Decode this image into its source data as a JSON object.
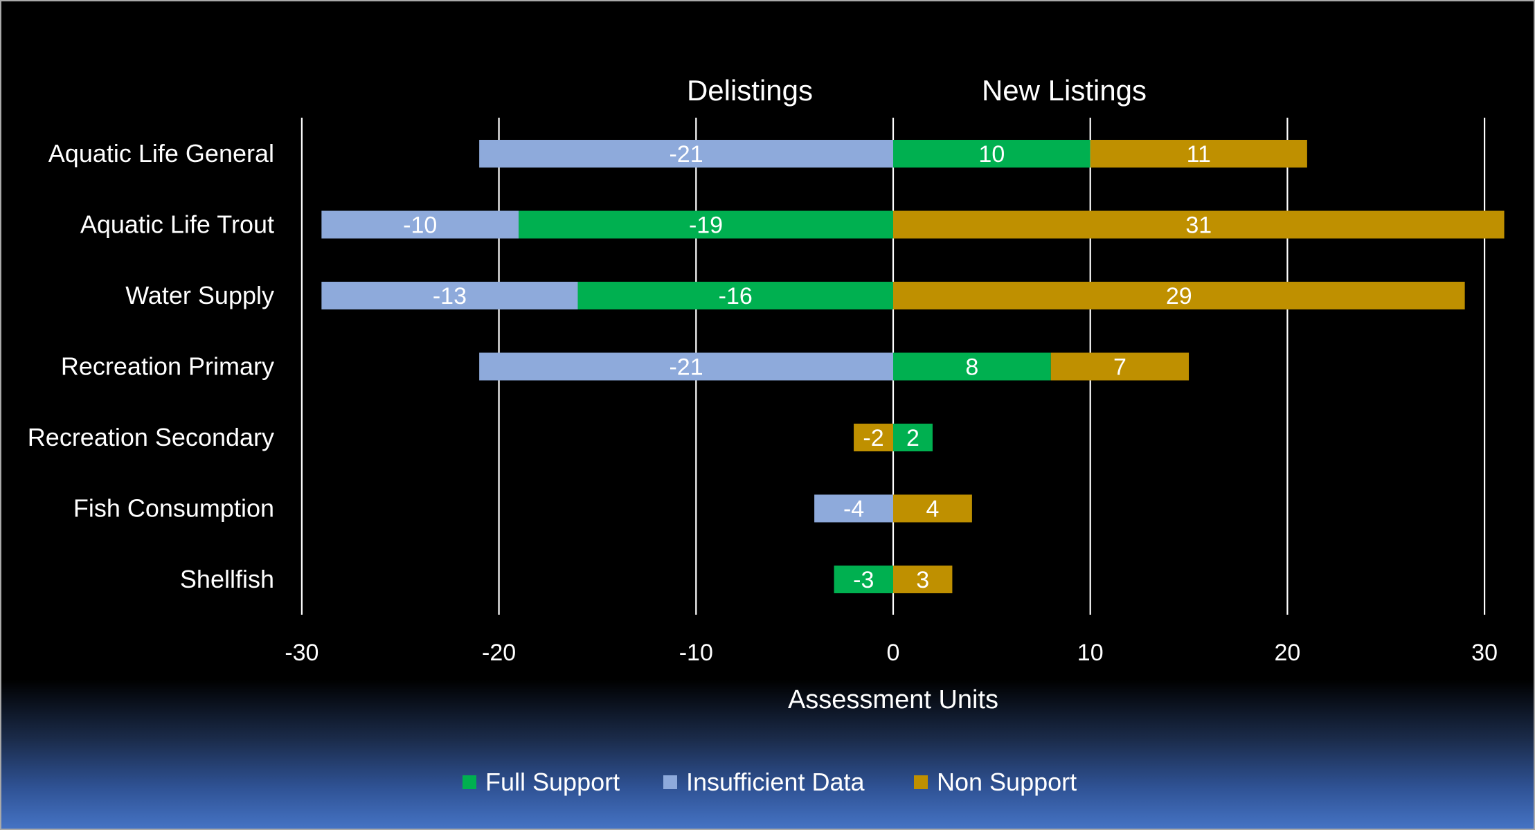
{
  "chart_data": {
    "type": "bar",
    "orientation": "horizontal",
    "stacked": true,
    "section_titles": {
      "left": "Delistings",
      "right": "New Listings"
    },
    "categories": [
      "Aquatic Life General",
      "Aquatic Life Trout",
      "Water Supply",
      "Recreation Primary",
      "Recreation Secondary",
      "Fish Consumption",
      "Shellfish"
    ],
    "xlabel": "Assessment Units",
    "xlim": [
      -30,
      30
    ],
    "xticks": [
      "-30",
      "-20",
      "-10",
      "0",
      "10",
      "20",
      "30"
    ],
    "grid": "vertical",
    "legend_position": "bottom",
    "series": [
      {
        "name": "Full Support",
        "color": "#00b050",
        "values": [
          10,
          -19,
          -16,
          8,
          2,
          null,
          -3
        ],
        "labels": [
          "10",
          "-19",
          "-16",
          "8",
          "2",
          "",
          "-3"
        ]
      },
      {
        "name": "Insufficient Data",
        "color": "#8eaadb",
        "values": [
          -21,
          -10,
          -13,
          -21,
          null,
          -4,
          null
        ],
        "labels": [
          "-21",
          "-10",
          "-13",
          "-21",
          "",
          "-4",
          ""
        ]
      },
      {
        "name": "Non Support",
        "color": "#bf9000",
        "values": [
          11,
          31,
          29,
          7,
          -2,
          4,
          3
        ],
        "labels": [
          "11",
          "31",
          "29",
          "7",
          "-2",
          "4",
          "3"
        ]
      }
    ]
  }
}
